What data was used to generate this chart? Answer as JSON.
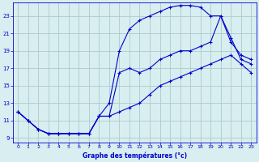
{
  "xlabel": "Graphe des températures (°c)",
  "bg_color": "#d8eef0",
  "grid_color": "#aacccc",
  "line_color": "#0000cc",
  "xlim": [
    -0.5,
    23.5
  ],
  "ylim": [
    8.5,
    24.5
  ],
  "yticks": [
    9,
    11,
    13,
    15,
    17,
    19,
    21,
    23
  ],
  "xticks": [
    0,
    1,
    2,
    3,
    4,
    5,
    6,
    7,
    8,
    9,
    10,
    11,
    12,
    13,
    14,
    15,
    16,
    17,
    18,
    19,
    20,
    21,
    22,
    23
  ],
  "line1_x": [
    0,
    1,
    2,
    3,
    4,
    5,
    6,
    7,
    8,
    9,
    10,
    11,
    12,
    13,
    14,
    15,
    16,
    17,
    18,
    19,
    20,
    21,
    22,
    23
  ],
  "line1_y": [
    12.0,
    11.0,
    10.0,
    9.5,
    9.5,
    9.5,
    9.5,
    9.5,
    11.5,
    13.0,
    19.0,
    21.5,
    22.5,
    23.0,
    23.5,
    24.0,
    24.2,
    24.2,
    24.0,
    23.0,
    23.0,
    20.0,
    18.5,
    18.0
  ],
  "line2_x": [
    0,
    1,
    2,
    3,
    4,
    5,
    6,
    7,
    8,
    9,
    10,
    11,
    12,
    13,
    14,
    15,
    16,
    17,
    18,
    19,
    20,
    21,
    22,
    23
  ],
  "line2_y": [
    12.0,
    11.0,
    10.0,
    9.5,
    9.5,
    9.5,
    9.5,
    9.5,
    11.5,
    11.5,
    16.5,
    17.0,
    16.5,
    17.0,
    18.0,
    18.5,
    19.0,
    19.0,
    19.5,
    20.0,
    23.0,
    20.5,
    18.0,
    17.5
  ],
  "line3_x": [
    0,
    1,
    2,
    3,
    4,
    5,
    6,
    7,
    8,
    9,
    10,
    11,
    12,
    13,
    14,
    15,
    16,
    17,
    18,
    19,
    20,
    21,
    22,
    23
  ],
  "line3_y": [
    12.0,
    11.0,
    10.0,
    9.5,
    9.5,
    9.5,
    9.5,
    9.5,
    11.5,
    11.5,
    12.0,
    12.5,
    13.0,
    14.0,
    15.0,
    15.5,
    16.0,
    16.5,
    17.0,
    17.5,
    18.0,
    18.5,
    17.5,
    16.5
  ]
}
